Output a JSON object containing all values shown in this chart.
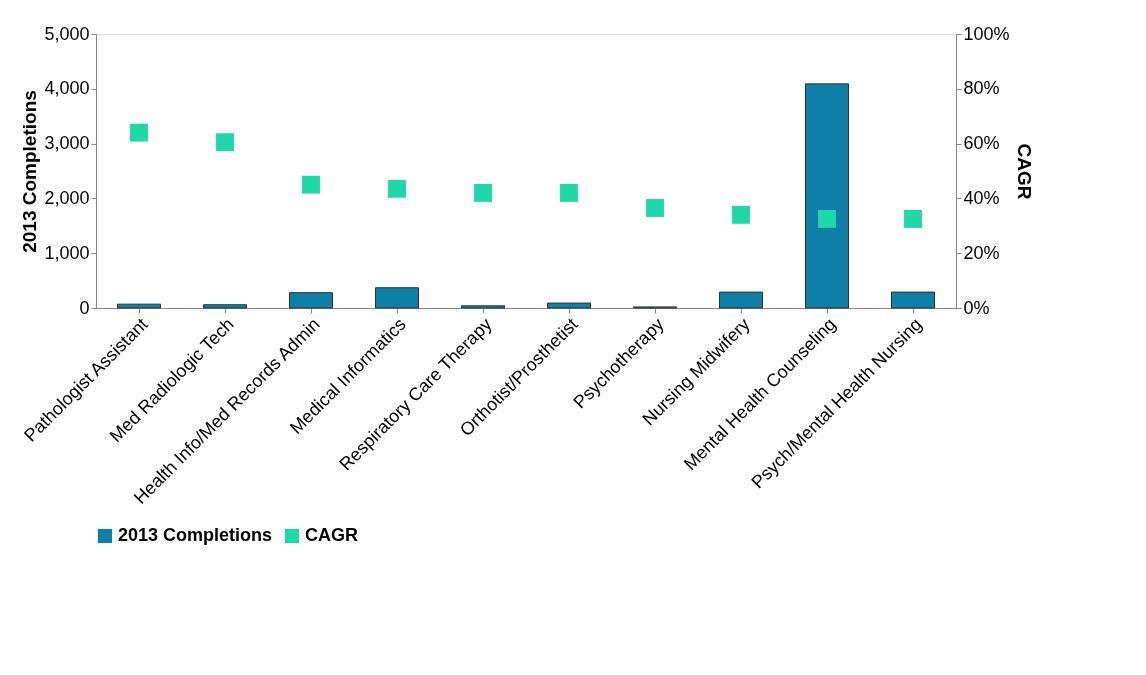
{
  "chart_data": {
    "type": "bar",
    "categories": [
      "Pathologist Assistant",
      "Med Radiologic Tech",
      "Health Info/Med Records Admin",
      "Medical Informatics",
      "Respiratory Care Therapy",
      "Orthotist/Prosthetist",
      "Psychotherapy",
      "Nursing Midwifery",
      "Mental Health Counseling",
      "Psych/Mental Health Nursing"
    ],
    "series": [
      {
        "name": "2013 Completions",
        "color": "#0e7fa6",
        "values": [
          70,
          60,
          280,
          370,
          40,
          90,
          20,
          290,
          4090,
          290
        ]
      },
      {
        "name": "CAGR",
        "type": "scatter",
        "axis": "y2",
        "color": "#1fd8a8",
        "values": [
          64,
          60.5,
          45,
          43.5,
          42,
          42,
          36.5,
          34,
          32.5,
          32.5
        ]
      }
    ],
    "ylabel": "2013 Completions",
    "y2label": "CAGR",
    "ylim": [
      0,
      5000
    ],
    "yticks": [
      {
        "value": 0,
        "label": "0"
      },
      {
        "value": 1000,
        "label": "1,000"
      },
      {
        "value": 2000,
        "label": "2,000"
      },
      {
        "value": 3000,
        "label": "3,000"
      },
      {
        "value": 4000,
        "label": "4,000"
      },
      {
        "value": 5000,
        "label": "5,000"
      }
    ],
    "y2lim": [
      0,
      100
    ],
    "y2ticks": [
      {
        "value": 0,
        "label": "0%"
      },
      {
        "value": 20,
        "label": "20%"
      },
      {
        "value": 40,
        "label": "40%"
      },
      {
        "value": 60,
        "label": "60%"
      },
      {
        "value": 80,
        "label": "80%"
      },
      {
        "value": 100,
        "label": "100%"
      }
    ],
    "marker": "square",
    "grid": false,
    "legend": "bottom"
  }
}
